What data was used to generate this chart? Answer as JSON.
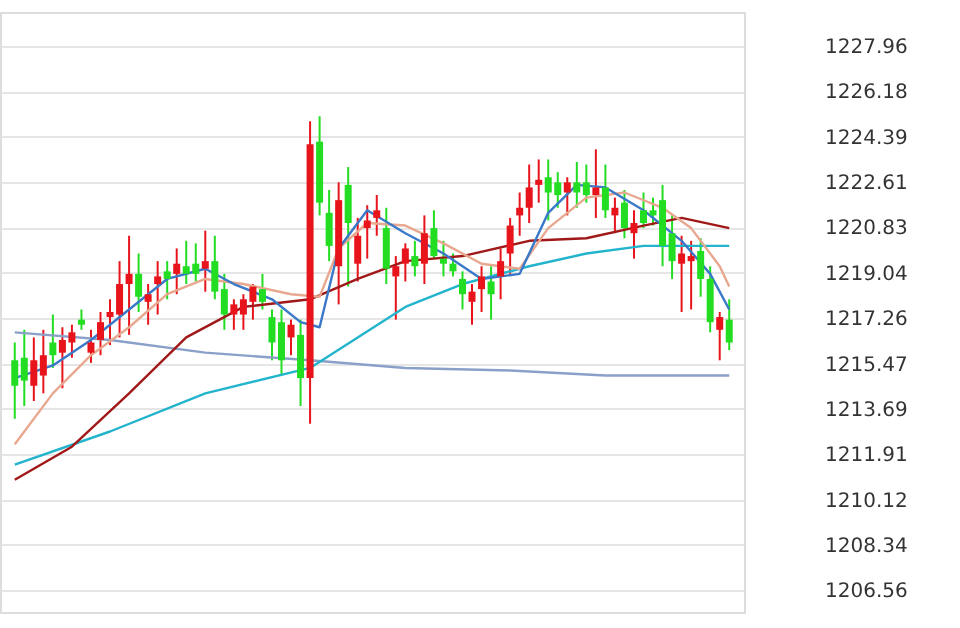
{
  "chart_data": {
    "type": "candlestick",
    "categories": [
      null,
      null,
      null,
      null,
      null,
      null,
      null,
      null,
      null,
      null,
      null,
      null,
      null,
      null,
      null,
      null,
      null,
      null,
      null,
      null,
      null,
      null,
      null,
      null,
      null,
      null,
      null,
      null,
      null,
      null,
      null,
      null,
      null,
      null,
      null,
      null,
      null,
      null,
      null,
      null,
      null,
      null,
      null,
      null,
      null,
      null,
      null,
      null,
      null,
      null,
      null,
      null,
      null,
      null,
      null,
      null,
      null,
      null,
      null,
      null,
      null,
      null,
      null,
      null,
      null,
      null,
      null,
      null,
      null,
      null,
      null,
      null,
      null,
      null,
      null,
      null
    ],
    "ohlc": [
      [
        1215.6,
        1216.3,
        1213.3,
        1214.6
      ],
      [
        1215.7,
        1216.8,
        1213.8,
        1214.8
      ],
      [
        1214.6,
        1216.5,
        1214.0,
        1215.6
      ],
      [
        1215.0,
        1216.8,
        1214.3,
        1215.8
      ],
      [
        1216.3,
        1217.4,
        1215.3,
        1215.8
      ],
      [
        1215.9,
        1216.9,
        1214.5,
        1216.4
      ],
      [
        1216.3,
        1217.0,
        1215.7,
        1216.7
      ],
      [
        1217.2,
        1217.6,
        1216.8,
        1217.0
      ],
      [
        1215.9,
        1216.8,
        1215.5,
        1216.3
      ],
      [
        1216.4,
        1217.5,
        1215.8,
        1217.1
      ],
      [
        1217.3,
        1218.0,
        1216.2,
        1217.5
      ],
      [
        1217.4,
        1219.5,
        1216.5,
        1218.6
      ],
      [
        1218.6,
        1220.5,
        1216.6,
        1219.0
      ],
      [
        1219.0,
        1219.8,
        1217.5,
        1218.1
      ],
      [
        1217.9,
        1218.6,
        1217.0,
        1218.2
      ],
      [
        1218.6,
        1219.5,
        1217.4,
        1218.9
      ],
      [
        1219.1,
        1219.5,
        1218.0,
        1218.8
      ],
      [
        1219.0,
        1220.0,
        1218.2,
        1219.4
      ],
      [
        1219.3,
        1220.3,
        1218.6,
        1219.0
      ],
      [
        1219.4,
        1220.2,
        1218.7,
        1219.0
      ],
      [
        1219.2,
        1220.7,
        1218.3,
        1219.5
      ],
      [
        1219.5,
        1220.5,
        1218.0,
        1218.3
      ],
      [
        1218.4,
        1219.0,
        1216.8,
        1217.4
      ],
      [
        1217.4,
        1218.0,
        1216.8,
        1217.8
      ],
      [
        1217.4,
        1218.2,
        1216.8,
        1218.0
      ],
      [
        1217.9,
        1218.6,
        1217.2,
        1218.5
      ],
      [
        1218.4,
        1219.0,
        1217.6,
        1217.9
      ],
      [
        1217.3,
        1217.6,
        1215.6,
        1216.3
      ],
      [
        1217.1,
        1217.6,
        1215.0,
        1215.6
      ],
      [
        1216.5,
        1217.2,
        1215.8,
        1217.0
      ],
      [
        1216.6,
        1217.2,
        1213.8,
        1214.9
      ],
      [
        1214.9,
        1225.0,
        1213.1,
        1224.1
      ],
      [
        1224.2,
        1225.2,
        1221.3,
        1221.8
      ],
      [
        1221.4,
        1222.3,
        1219.5,
        1220.1
      ],
      [
        1219.3,
        1222.6,
        1217.8,
        1221.9
      ],
      [
        1222.5,
        1223.2,
        1218.5,
        1221.0
      ],
      [
        1219.4,
        1221.2,
        1218.7,
        1220.5
      ],
      [
        1220.8,
        1221.7,
        1219.6,
        1221.1
      ],
      [
        1221.2,
        1222.1,
        1220.5,
        1221.5
      ],
      [
        1220.8,
        1221.6,
        1218.6,
        1219.2
      ],
      [
        1218.9,
        1219.7,
        1217.2,
        1219.3
      ],
      [
        1219.4,
        1220.2,
        1218.7,
        1220.0
      ],
      [
        1219.7,
        1220.3,
        1218.9,
        1219.3
      ],
      [
        1219.4,
        1221.3,
        1218.6,
        1220.6
      ],
      [
        1220.8,
        1221.5,
        1219.6,
        1219.7
      ],
      [
        1219.6,
        1220.3,
        1218.9,
        1219.4
      ],
      [
        1219.4,
        1219.8,
        1218.9,
        1219.1
      ],
      [
        1218.8,
        1219.1,
        1217.6,
        1218.2
      ],
      [
        1217.9,
        1218.6,
        1217.0,
        1218.3
      ],
      [
        1218.4,
        1219.3,
        1217.5,
        1218.9
      ],
      [
        1218.7,
        1219.3,
        1217.2,
        1218.2
      ],
      [
        1218.9,
        1220.0,
        1218.0,
        1219.5
      ],
      [
        1219.8,
        1221.2,
        1219.0,
        1220.9
      ],
      [
        1221.3,
        1222.2,
        1220.5,
        1221.6
      ],
      [
        1221.6,
        1223.3,
        1221.0,
        1222.4
      ],
      [
        1222.5,
        1223.5,
        1221.8,
        1222.7
      ],
      [
        1222.8,
        1223.5,
        1221.1,
        1222.2
      ],
      [
        1222.6,
        1223.0,
        1221.6,
        1222.1
      ],
      [
        1222.2,
        1222.8,
        1221.3,
        1222.6
      ],
      [
        1222.6,
        1223.4,
        1221.6,
        1222.2
      ],
      [
        1222.6,
        1223.3,
        1221.8,
        1222.1
      ],
      [
        1222.1,
        1223.9,
        1221.2,
        1222.4
      ],
      [
        1222.4,
        1223.3,
        1221.2,
        1221.5
      ],
      [
        1221.3,
        1222.0,
        1220.6,
        1221.6
      ],
      [
        1221.8,
        1222.3,
        1220.4,
        1220.8
      ],
      [
        1220.6,
        1221.5,
        1219.6,
        1221.0
      ],
      [
        1221.5,
        1222.2,
        1220.8,
        1221.0
      ],
      [
        1221.5,
        1222.0,
        1220.9,
        1221.3
      ],
      [
        1221.9,
        1222.5,
        1219.3,
        1220.1
      ],
      [
        1220.6,
        1221.3,
        1218.8,
        1219.5
      ],
      [
        1219.4,
        1220.5,
        1217.5,
        1219.8
      ],
      [
        1219.5,
        1220.3,
        1217.6,
        1219.7
      ],
      [
        1219.9,
        1220.4,
        1218.1,
        1218.8
      ],
      [
        1218.8,
        1219.3,
        1216.7,
        1217.1
      ],
      [
        1216.8,
        1217.5,
        1215.6,
        1217.3
      ],
      [
        1217.2,
        1218.0,
        1216.0,
        1216.3
      ]
    ],
    "colors": [
      "#22dd22",
      "#22dd22",
      "#e8141c",
      "#e8141c",
      "#22dd22",
      "#e8141c",
      "#e8141c",
      "#22dd22",
      "#e8141c",
      "#e8141c",
      "#e8141c",
      "#e8141c",
      "#e8141c",
      "#22dd22",
      "#e8141c",
      "#e8141c",
      "#22dd22",
      "#e8141c",
      "#22dd22",
      "#22dd22",
      "#e8141c",
      "#22dd22",
      "#22dd22",
      "#e8141c",
      "#e8141c",
      "#e8141c",
      "#22dd22",
      "#22dd22",
      "#22dd22",
      "#e8141c",
      "#22dd22",
      "#e8141c",
      "#22dd22",
      "#22dd22",
      "#e8141c",
      "#22dd22",
      "#e8141c",
      "#e8141c",
      "#e8141c",
      "#22dd22",
      "#e8141c",
      "#e8141c",
      "#22dd22",
      "#e8141c",
      "#22dd22",
      "#22dd22",
      "#22dd22",
      "#22dd22",
      "#e8141c",
      "#e8141c",
      "#22dd22",
      "#e8141c",
      "#e8141c",
      "#e8141c",
      "#e8141c",
      "#e8141c",
      "#22dd22",
      "#22dd22",
      "#e8141c",
      "#22dd22",
      "#22dd22",
      "#e8141c",
      "#22dd22",
      "#e8141c",
      "#22dd22",
      "#e8141c",
      "#22dd22",
      "#22dd22",
      "#22dd22",
      "#22dd22",
      "#e8141c",
      "#e8141c",
      "#22dd22",
      "#22dd22",
      "#e8141c",
      "#22dd22"
    ],
    "series": [
      {
        "type": "line",
        "color": "#8aa0c8",
        "values": [
          1216.7,
          null,
          null,
          null,
          null,
          null,
          null,
          null,
          null,
          null,
          1216.4,
          null,
          null,
          null,
          null,
          null,
          null,
          null,
          null,
          null,
          1215.9,
          null,
          null,
          null,
          null,
          null,
          null,
          null,
          null,
          null,
          null,
          1215.6,
          null,
          null,
          null,
          null,
          null,
          null,
          null,
          null,
          null,
          1215.3,
          null,
          null,
          null,
          null,
          null,
          null,
          null,
          null,
          null,
          null,
          1215.2,
          null,
          null,
          null,
          null,
          null,
          null,
          null,
          null,
          null,
          1215.0,
          null,
          null,
          null,
          null,
          null,
          null,
          null,
          null,
          null,
          null,
          null,
          null,
          1215.0
        ]
      },
      {
        "type": "line",
        "color": "#22b4cc",
        "values": [
          1211.5,
          null,
          null,
          null,
          null,
          null,
          null,
          null,
          null,
          null,
          1212.8,
          null,
          null,
          null,
          null,
          null,
          null,
          null,
          null,
          null,
          1214.3,
          null,
          null,
          null,
          null,
          null,
          null,
          null,
          null,
          null,
          null,
          1215.3,
          null,
          null,
          null,
          null,
          1216.5,
          null,
          null,
          null,
          null,
          1217.7,
          null,
          null,
          null,
          null,
          null,
          1218.6,
          null,
          null,
          null,
          null,
          null,
          null,
          1219.3,
          null,
          null,
          null,
          null,
          null,
          1219.8,
          null,
          null,
          null,
          null,
          null,
          1220.1,
          null,
          null,
          null,
          null,
          1220.1,
          null,
          null,
          null,
          1220.1
        ]
      },
      {
        "type": "line",
        "color": "#a01818",
        "values": [
          1210.9,
          null,
          null,
          null,
          null,
          null,
          1212.2,
          null,
          null,
          null,
          null,
          null,
          1214.3,
          null,
          null,
          null,
          null,
          null,
          1216.5,
          null,
          null,
          null,
          null,
          null,
          1217.7,
          null,
          null,
          null,
          null,
          null,
          null,
          1218.0,
          null,
          null,
          null,
          null,
          1218.8,
          null,
          null,
          null,
          null,
          1219.5,
          null,
          null,
          null,
          null,
          null,
          1219.7,
          null,
          null,
          null,
          null,
          null,
          null,
          1220.3,
          null,
          null,
          null,
          null,
          null,
          1220.4,
          null,
          null,
          null,
          null,
          null,
          1220.9,
          null,
          null,
          null,
          1221.2,
          null,
          null,
          null,
          null,
          1220.8
        ]
      },
      {
        "type": "line",
        "color": "#e8a890",
        "values": [
          1212.3,
          null,
          null,
          null,
          1214.3,
          null,
          null,
          null,
          1215.8,
          null,
          null,
          null,
          1216.9,
          null,
          null,
          null,
          1218.2,
          null,
          null,
          null,
          1218.8,
          null,
          null,
          null,
          1218.6,
          null,
          null,
          null,
          null,
          1218.2,
          null,
          null,
          1218.1,
          null,
          1220.0,
          null,
          null,
          1221.0,
          null,
          null,
          null,
          1220.9,
          null,
          null,
          null,
          1220.2,
          null,
          null,
          null,
          1219.4,
          null,
          null,
          null,
          1219.2,
          null,
          null,
          1220.8,
          null,
          null,
          null,
          1222.0,
          null,
          null,
          null,
          1222.2,
          null,
          null,
          null,
          1221.6,
          null,
          null,
          1220.8,
          null,
          null,
          1219.3,
          1218.5
        ]
      },
      {
        "type": "line",
        "color": "#3a78c8",
        "values": [
          1214.9,
          null,
          null,
          null,
          1215.4,
          null,
          null,
          null,
          1216.4,
          null,
          null,
          null,
          1217.6,
          null,
          null,
          null,
          1218.8,
          null,
          null,
          null,
          1219.2,
          null,
          null,
          1218.6,
          null,
          null,
          null,
          1218.0,
          null,
          null,
          1217.1,
          null,
          1216.9,
          null,
          1220.0,
          null,
          null,
          1221.5,
          null,
          null,
          null,
          1220.6,
          null,
          null,
          null,
          1219.8,
          null,
          null,
          null,
          1218.8,
          null,
          null,
          null,
          1219.0,
          null,
          null,
          1221.4,
          null,
          null,
          1222.5,
          null,
          null,
          1222.4,
          null,
          null,
          null,
          1221.5,
          null,
          null,
          null,
          1220.3,
          null,
          null,
          1219.0,
          null,
          1217.6
        ]
      }
    ],
    "ylim": [
      1205.7,
      1229.3
    ],
    "yticks": [
      1227.96,
      1226.18,
      1224.39,
      1222.61,
      1220.83,
      1219.04,
      1217.26,
      1215.47,
      1213.69,
      1211.91,
      1210.12,
      1208.34,
      1206.56
    ],
    "grid": "y",
    "tick_labels": "y"
  }
}
